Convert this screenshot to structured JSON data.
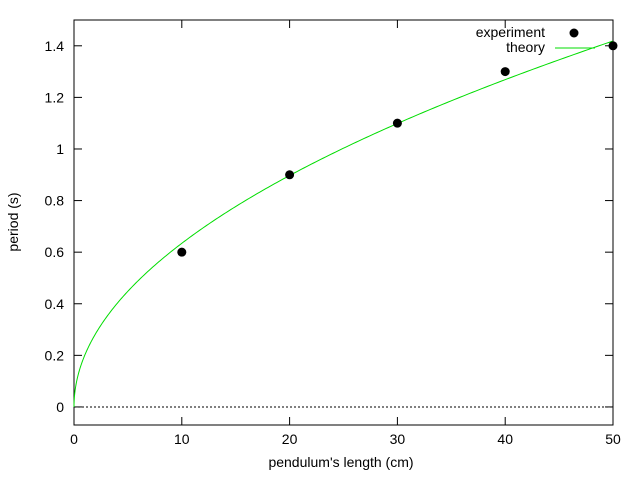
{
  "chart_data": {
    "type": "scatter",
    "title": "",
    "xlabel": "pendulum's length (cm)",
    "ylabel": "period (s)",
    "xlim": [
      0,
      50
    ],
    "ylim": [
      -0.07,
      1.5
    ],
    "xticks": [
      0,
      10,
      20,
      30,
      40,
      50
    ],
    "yticks": [
      0,
      0.2,
      0.4,
      0.6,
      0.8,
      1,
      1.2,
      1.4
    ],
    "grid": false,
    "legend_position": "top-right",
    "zero_line": true,
    "series": [
      {
        "name": "experiment",
        "kind": "points",
        "color": "#000000",
        "x": [
          10,
          20,
          30,
          40,
          50
        ],
        "y": [
          0.6,
          0.9,
          1.1,
          1.3,
          1.4
        ]
      },
      {
        "name": "theory",
        "kind": "line",
        "color": "#00dd00",
        "function": "2*pi*sqrt(x/981)",
        "x_range": [
          0,
          50
        ]
      }
    ]
  }
}
